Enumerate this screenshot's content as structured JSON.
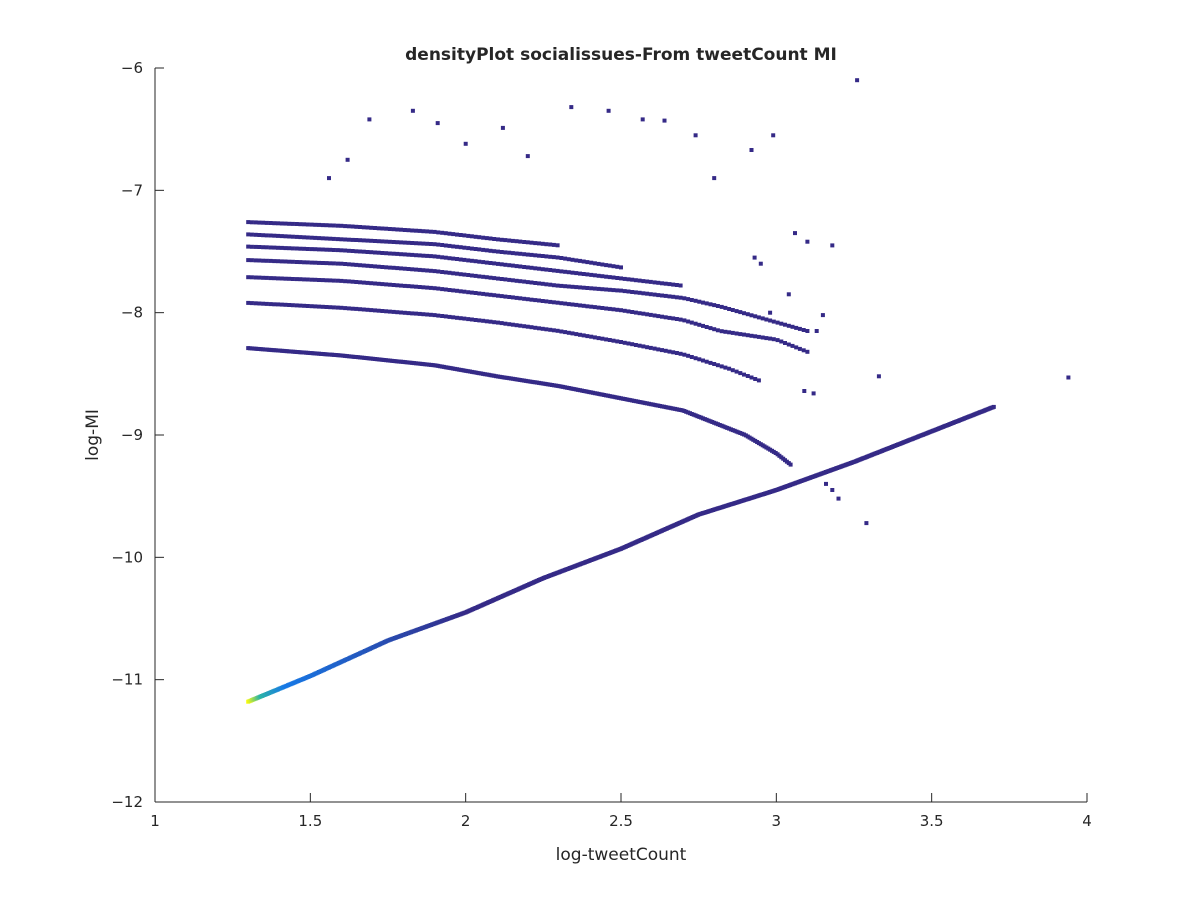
{
  "chart_data": {
    "type": "scatter",
    "title": "densityPlot socialissues-From tweetCount MI",
    "xlabel": "log-tweetCount",
    "ylabel": "log-MI",
    "xlim": [
      1,
      4
    ],
    "ylim": [
      -12,
      -6
    ],
    "xticks": [
      1,
      1.5,
      2,
      2.5,
      3,
      3.5,
      4
    ],
    "xtick_labels": [
      "1",
      "1.5",
      "2",
      "2.5",
      "3",
      "3.5",
      "4"
    ],
    "yticks": [
      -12,
      -11,
      -10,
      -9,
      -8,
      -7,
      -6
    ],
    "ytick_labels": [
      "−12",
      "−11",
      "−10",
      "−9",
      "−8",
      "−7",
      "−6"
    ],
    "grid": false,
    "legend": "none",
    "colormap": "parula",
    "colors": {
      "low_density": "#352a87",
      "mid_density": "#1779e6",
      "mid_high_density": "#2bb4a6",
      "high_density": "#f9fb0e",
      "axis": "#262626"
    },
    "series": [
      {
        "description_points": "main diagonal band",
        "x_range": [
          1.3,
          3.7
        ],
        "points": [
          [
            1.3,
            -11.18
          ],
          [
            1.5,
            -10.97
          ],
          [
            1.75,
            -10.68
          ],
          [
            2.0,
            -10.45
          ],
          [
            2.25,
            -10.17
          ],
          [
            2.5,
            -9.93
          ],
          [
            2.75,
            -9.65
          ],
          [
            3.0,
            -9.45
          ],
          [
            3.25,
            -9.22
          ],
          [
            3.5,
            -8.97
          ],
          [
            3.7,
            -8.77
          ]
        ]
      },
      {
        "points": [
          [
            1.3,
            -8.29
          ],
          [
            1.6,
            -8.35
          ],
          [
            1.9,
            -8.43
          ],
          [
            2.1,
            -8.52
          ],
          [
            2.3,
            -8.6
          ],
          [
            2.5,
            -8.7
          ],
          [
            2.7,
            -8.8
          ],
          [
            2.9,
            -9.0
          ],
          [
            3.0,
            -9.15
          ],
          [
            3.05,
            -9.25
          ]
        ]
      },
      {
        "points": [
          [
            1.3,
            -7.92
          ],
          [
            1.6,
            -7.96
          ],
          [
            1.9,
            -8.02
          ],
          [
            2.1,
            -8.08
          ],
          [
            2.3,
            -8.15
          ],
          [
            2.5,
            -8.24
          ],
          [
            2.7,
            -8.34
          ],
          [
            2.85,
            -8.46
          ],
          [
            2.95,
            -8.56
          ]
        ]
      },
      {
        "points": [
          [
            1.3,
            -7.71
          ],
          [
            1.6,
            -7.74
          ],
          [
            1.9,
            -7.8
          ],
          [
            2.1,
            -7.86
          ],
          [
            2.3,
            -7.92
          ],
          [
            2.5,
            -7.98
          ],
          [
            2.7,
            -8.06
          ],
          [
            2.82,
            -8.15
          ],
          [
            3.0,
            -8.22
          ],
          [
            3.1,
            -8.32
          ]
        ]
      },
      {
        "points": [
          [
            1.3,
            -7.57
          ],
          [
            1.6,
            -7.6
          ],
          [
            1.9,
            -7.66
          ],
          [
            2.1,
            -7.72
          ],
          [
            2.3,
            -7.78
          ],
          [
            2.5,
            -7.82
          ],
          [
            2.7,
            -7.88
          ],
          [
            2.82,
            -7.95
          ],
          [
            3.1,
            -8.15
          ]
        ]
      },
      {
        "points": [
          [
            1.3,
            -7.46
          ],
          [
            1.6,
            -7.49
          ],
          [
            1.9,
            -7.54
          ],
          [
            2.1,
            -7.6
          ],
          [
            2.3,
            -7.66
          ],
          [
            2.5,
            -7.72
          ],
          [
            2.7,
            -7.78
          ]
        ]
      },
      {
        "points": [
          [
            1.3,
            -7.36
          ],
          [
            1.6,
            -7.4
          ],
          [
            1.9,
            -7.44
          ],
          [
            2.1,
            -7.5
          ],
          [
            2.3,
            -7.55
          ],
          [
            2.5,
            -7.63
          ]
        ]
      },
      {
        "points": [
          [
            1.3,
            -7.26
          ],
          [
            1.6,
            -7.29
          ],
          [
            1.9,
            -7.34
          ],
          [
            2.1,
            -7.4
          ],
          [
            2.3,
            -7.45
          ]
        ]
      },
      {
        "points": [
          [
            1.69,
            -6.42
          ],
          [
            1.83,
            -6.35
          ],
          [
            1.91,
            -6.45
          ],
          [
            2.12,
            -6.49
          ],
          [
            2.34,
            -6.32
          ],
          [
            2.46,
            -6.35
          ],
          [
            2.57,
            -6.42
          ],
          [
            2.64,
            -6.43
          ],
          [
            2.99,
            -6.55
          ],
          [
            3.26,
            -6.1
          ],
          [
            1.62,
            -6.75
          ],
          [
            1.56,
            -6.9
          ],
          [
            2.8,
            -6.9
          ],
          [
            2.92,
            -6.67
          ],
          [
            2.74,
            -6.55
          ],
          [
            2.2,
            -6.72
          ],
          [
            2.0,
            -6.62
          ],
          [
            3.33,
            -8.52
          ],
          [
            3.94,
            -8.53
          ],
          [
            3.09,
            -8.64
          ],
          [
            3.12,
            -8.66
          ],
          [
            3.2,
            -9.52
          ],
          [
            3.29,
            -9.72
          ],
          [
            3.18,
            -9.45
          ],
          [
            3.16,
            -9.4
          ],
          [
            2.98,
            -8.0
          ],
          [
            3.04,
            -7.85
          ],
          [
            3.1,
            -7.42
          ],
          [
            3.18,
            -7.45
          ],
          [
            3.15,
            -8.02
          ],
          [
            3.13,
            -8.15
          ],
          [
            2.95,
            -7.6
          ],
          [
            2.93,
            -7.55
          ],
          [
            3.06,
            -7.35
          ]
        ]
      }
    ]
  }
}
